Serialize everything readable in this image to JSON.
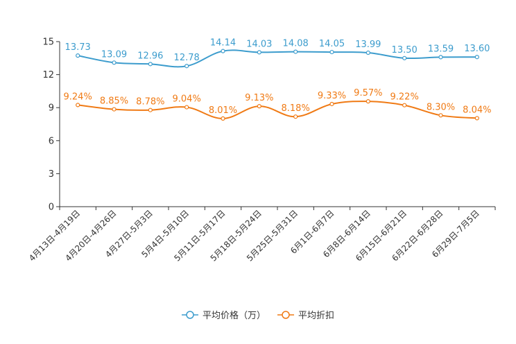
{
  "chart_data": {
    "type": "line",
    "categories": [
      "4月13日-4月19日",
      "4月20日-4月26日",
      "4月27日-5月3日",
      "5月4日-5月10日",
      "5月11日-5月17日",
      "5月18日-5月24日",
      "5月25日-5月31日",
      "6月1日-6月7日",
      "6月8日-6月14日",
      "6月15日-6月21日",
      "6月22日-6月28日",
      "6月29日-7月5日"
    ],
    "ylim": [
      0,
      15
    ],
    "yticks": [
      "0",
      "3",
      "6",
      "9",
      "12",
      "15"
    ],
    "ytick_values": [
      0,
      3,
      6,
      9,
      12,
      15
    ],
    "series": [
      {
        "name": "平均价格（万）",
        "color": "#3c9ccd",
        "values": [
          13.73,
          13.09,
          12.96,
          12.78,
          14.14,
          14.03,
          14.08,
          14.05,
          13.99,
          13.5,
          13.59,
          13.6
        ],
        "labels": [
          "13.73",
          "13.09",
          "12.96",
          "12.78",
          "14.14",
          "14.03",
          "14.08",
          "14.05",
          "13.99",
          "13.50",
          "13.59",
          "13.60"
        ]
      },
      {
        "name": "平均折扣",
        "color": "#f07a14",
        "values": [
          9.24,
          8.85,
          8.78,
          9.04,
          8.01,
          9.13,
          8.18,
          9.33,
          9.57,
          9.22,
          8.3,
          8.04
        ],
        "labels": [
          "9.24%",
          "8.85%",
          "8.78%",
          "9.04%",
          "8.01%",
          "9.13%",
          "8.18%",
          "9.33%",
          "9.57%",
          "9.22%",
          "8.30%",
          "8.04%"
        ]
      }
    ],
    "legend_position": "bottom-center"
  }
}
